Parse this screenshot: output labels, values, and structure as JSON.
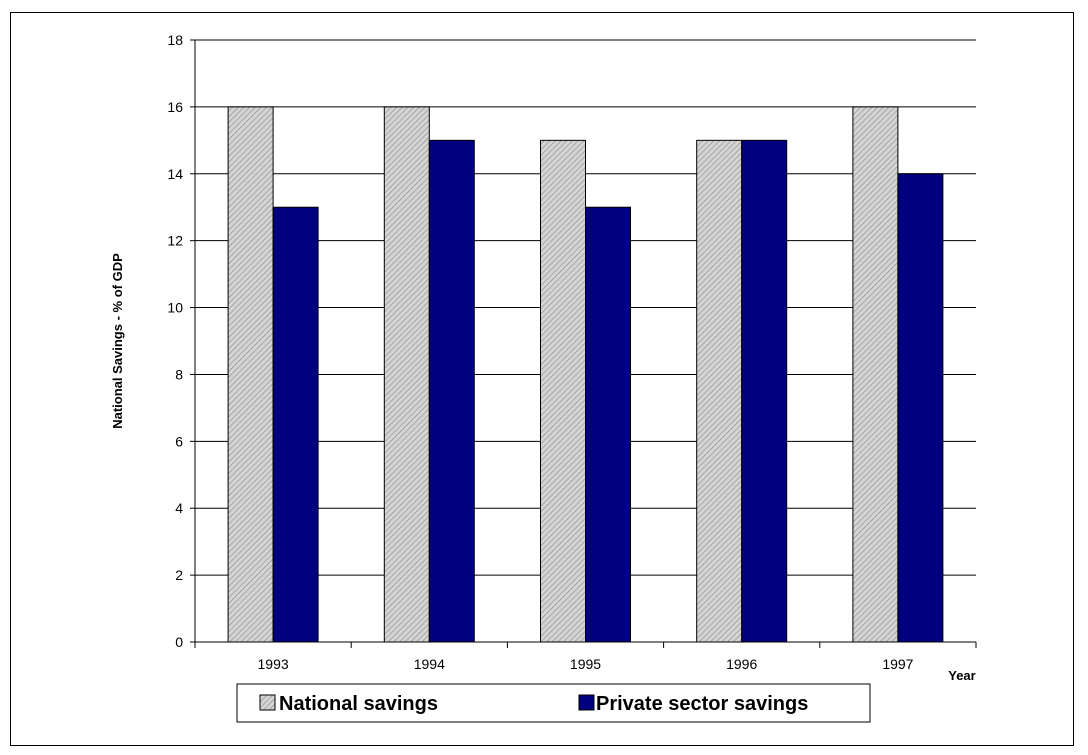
{
  "chart_data": {
    "type": "bar",
    "title": "",
    "xlabel": "Year",
    "ylabel": "National Savings - % of GDP",
    "categories": [
      "1993",
      "1994",
      "1995",
      "1996",
      "1997"
    ],
    "ylim": [
      0,
      18
    ],
    "yticks": [
      "0",
      "2",
      "4",
      "6",
      "8",
      "10",
      "12",
      "14",
      "16",
      "18"
    ],
    "grid": true,
    "legend_position": "bottom",
    "series": [
      {
        "name": "National savings",
        "values": [
          16,
          16,
          15,
          15,
          16
        ],
        "color": "#c0c0c0",
        "pattern": "diagonal-hatch"
      },
      {
        "name": "Private sector savings",
        "values": [
          13,
          15,
          13,
          15,
          14
        ],
        "color": "#000080"
      }
    ]
  }
}
